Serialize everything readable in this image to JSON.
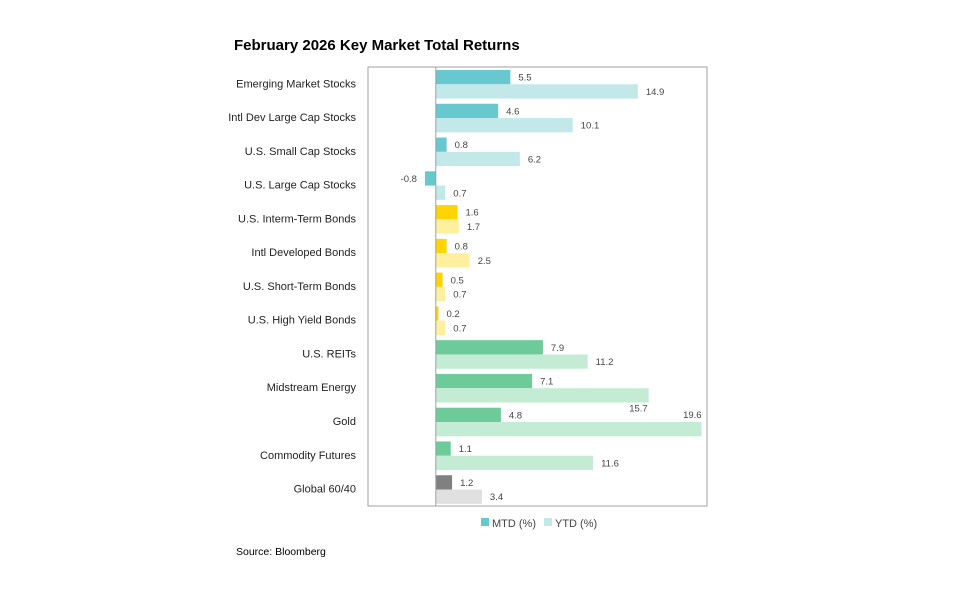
{
  "chart_data": {
    "type": "bar",
    "orientation": "horizontal",
    "title": "February 2026 Key Market Total Returns",
    "categories": [
      "Emerging Market Stocks",
      "Intl Dev Large Cap Stocks",
      "U.S. Small Cap Stocks",
      "U.S. Large Cap Stocks",
      "U.S. Interm-Term Bonds",
      "Intl Developed Bonds",
      "U.S. Short-Term Bonds",
      "U.S. High Yield Bonds",
      "U.S. REITs",
      "Midstream Energy",
      "Gold",
      "Commodity Futures",
      "Global 60/40"
    ],
    "series": [
      {
        "name": "MTD (%)",
        "values": [
          5.5,
          4.6,
          0.8,
          -0.8,
          1.6,
          0.8,
          0.5,
          0.2,
          7.9,
          7.1,
          4.8,
          1.1,
          1.2
        ]
      },
      {
        "name": "YTD (%)",
        "values": [
          14.9,
          10.1,
          6.2,
          0.7,
          1.7,
          2.5,
          0.7,
          0.7,
          11.2,
          15.7,
          19.6,
          11.6,
          3.4
        ]
      }
    ],
    "xlim": [
      -5,
      20
    ],
    "grid": false,
    "legend": "bottom",
    "colors": {
      "stocks": {
        "mtd": "#68c8cf",
        "ytd": "#c2e8ea"
      },
      "bonds": {
        "mtd": "#ffd400",
        "ytd": "#fff0a0"
      },
      "real_assets": {
        "mtd": "#6dcb9a",
        "ytd": "#c4ebd4"
      },
      "balanced": {
        "mtd": "#808080",
        "ytd": "#e0e0e0"
      }
    },
    "category_groups": [
      "stocks",
      "stocks",
      "stocks",
      "stocks",
      "bonds",
      "bonds",
      "bonds",
      "bonds",
      "real_assets",
      "real_assets",
      "real_assets",
      "real_assets",
      "balanced"
    ]
  },
  "source": "Source: Bloomberg"
}
